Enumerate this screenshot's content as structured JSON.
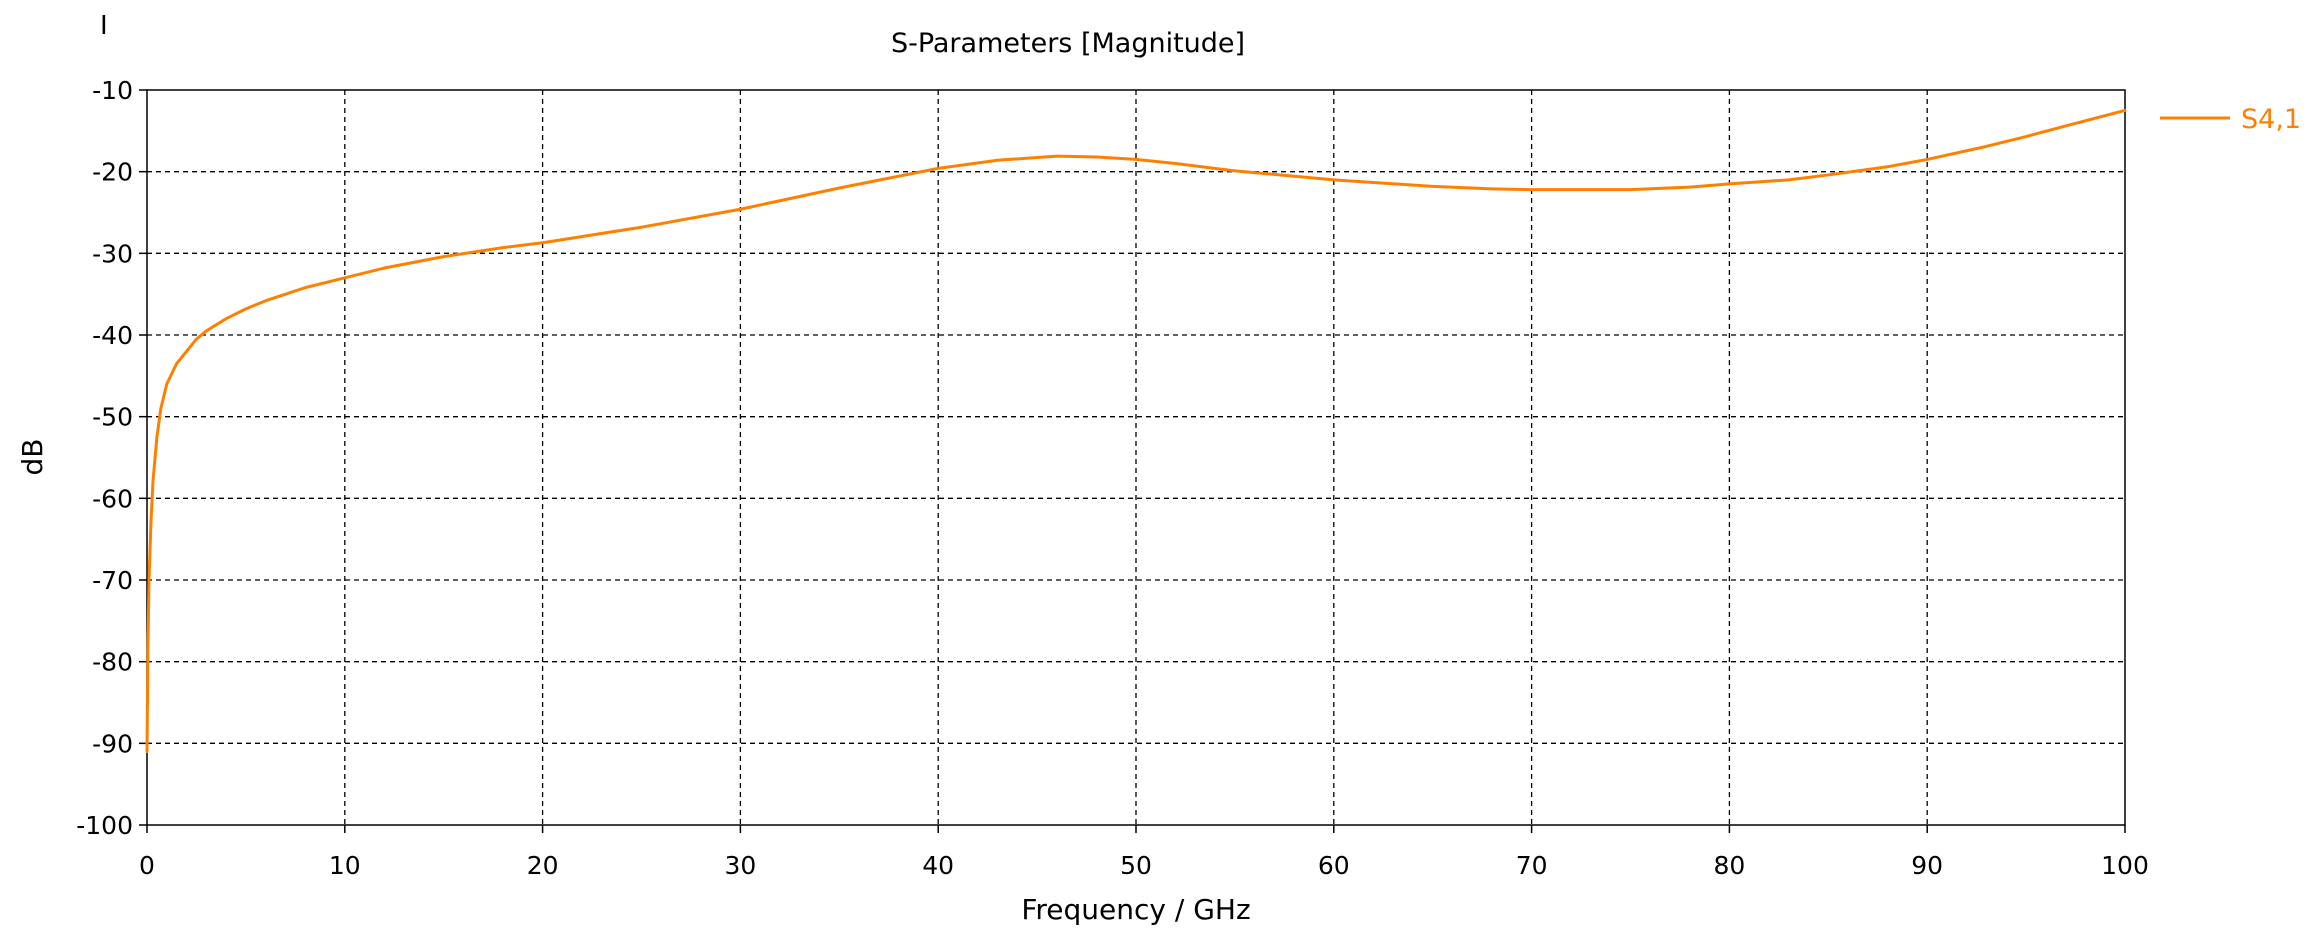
{
  "corner_mark": "I",
  "chart_data": {
    "type": "line",
    "title": "S-Parameters [Magnitude]",
    "xlabel": "Frequency / GHz",
    "ylabel": "dB",
    "xlim": [
      0,
      100
    ],
    "ylim": [
      -100,
      -10
    ],
    "xticks": [
      0,
      10,
      20,
      30,
      40,
      50,
      60,
      70,
      80,
      90,
      100
    ],
    "yticks": [
      -10,
      -20,
      -30,
      -40,
      -50,
      -60,
      -70,
      -80,
      -90,
      -100
    ],
    "grid": true,
    "grid_style": "dashed",
    "legend_position": "right",
    "series": [
      {
        "name": "S4,1",
        "color": "#ff8000",
        "x": [
          0,
          0.05,
          0.1,
          0.2,
          0.3,
          0.5,
          0.7,
          1,
          1.5,
          2,
          2.5,
          3,
          4,
          5,
          6,
          7,
          8,
          10,
          12,
          15,
          18,
          20,
          25,
          30,
          35,
          40,
          43,
          46,
          48,
          50,
          52,
          55,
          60,
          65,
          68,
          70,
          72,
          75,
          78,
          80,
          83,
          85,
          88,
          90,
          93,
          95,
          97,
          100
        ],
        "values": [
          -91,
          -78,
          -70,
          -63,
          -58,
          -52.5,
          -49,
          -46,
          -43.5,
          -42,
          -40.5,
          -39.5,
          -38,
          -36.8,
          -35.8,
          -35,
          -34.2,
          -33,
          -31.8,
          -30.4,
          -29.3,
          -28.7,
          -26.8,
          -24.6,
          -22,
          -19.6,
          -18.6,
          -18.1,
          -18.2,
          -18.5,
          -19,
          -19.9,
          -21,
          -21.8,
          -22.1,
          -22.2,
          -22.2,
          -22.2,
          -21.9,
          -21.5,
          -21,
          -20.4,
          -19.4,
          -18.5,
          -16.9,
          -15.7,
          -14.4,
          -12.5
        ]
      }
    ]
  }
}
